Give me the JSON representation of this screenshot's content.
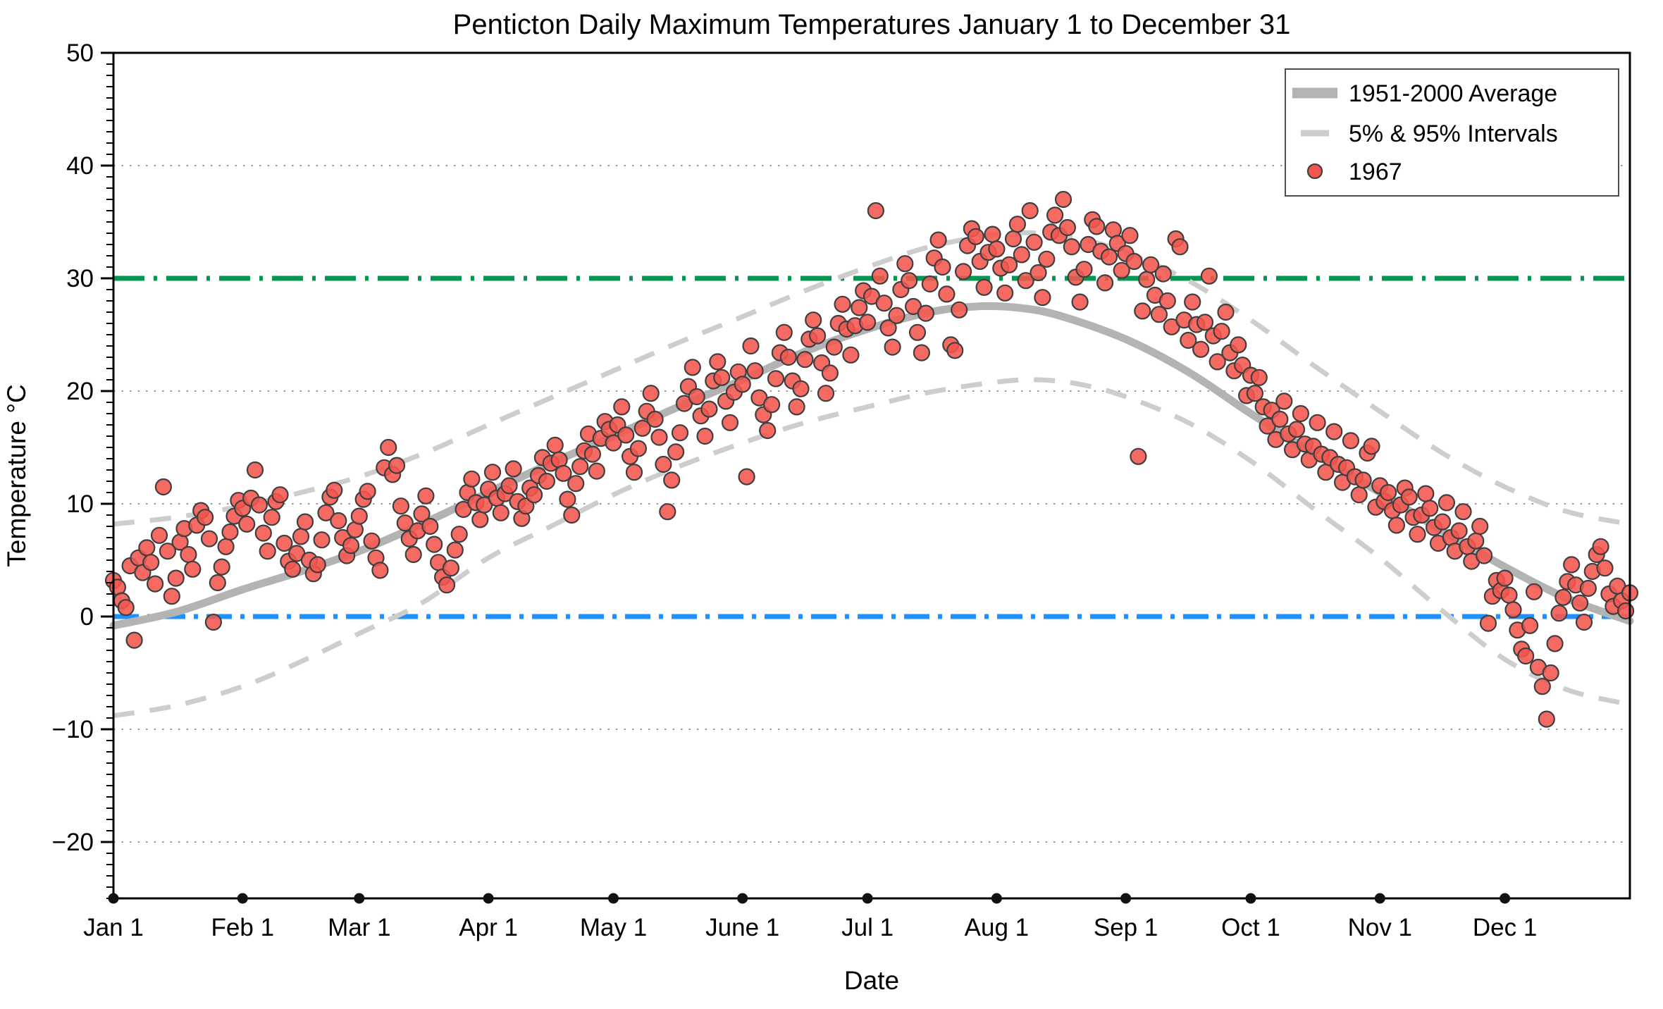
{
  "chart_data": {
    "type": "scatter",
    "title": "Penticton Daily Maximum Temperatures January 1 to December 31",
    "xlabel": "Date",
    "ylabel": "Temperature °C",
    "ylim": [
      -25,
      50
    ],
    "yticks_labeled": [
      -20,
      -10,
      0,
      10,
      20,
      30,
      40,
      50
    ],
    "minor_tick_step": 1,
    "gridlines_at": [
      40,
      20,
      10,
      -10,
      -20
    ],
    "grid_style": "dotted",
    "legend_position": "top-right",
    "x_month_ticks": [
      {
        "label": "Jan 1",
        "day": 0
      },
      {
        "label": "Feb 1",
        "day": 31
      },
      {
        "label": "Mar 1",
        "day": 59
      },
      {
        "label": "Apr 1",
        "day": 90
      },
      {
        "label": "May 1",
        "day": 120
      },
      {
        "label": "June 1",
        "day": 151
      },
      {
        "label": "Jul 1",
        "day": 181
      },
      {
        "label": "Aug 1",
        "day": 212
      },
      {
        "label": "Sep 1",
        "day": 243
      },
      {
        "label": "Oct 1",
        "day": 273
      },
      {
        "label": "Nov 1",
        "day": 304
      },
      {
        "label": "Dec 1",
        "day": 334
      }
    ],
    "reference_lines": [
      {
        "name": "30C-threshold-line",
        "value": 30,
        "style": "dashed",
        "color": "#00994f"
      },
      {
        "name": "freezing-0C-line",
        "value": 0,
        "style": "dashdot",
        "color": "#1e90ff"
      }
    ],
    "legend": {
      "entries": [
        {
          "label": "1951-2000 Average",
          "symbol": "thick-gray-line"
        },
        {
          "label": "5% & 95% Intervals",
          "symbol": "dashed-gray-line"
        },
        {
          "label": "1967",
          "symbol": "red-dot"
        }
      ]
    },
    "colors": {
      "average_line": "#b3b3b3",
      "interval_line": "#cdcdcd",
      "scatter_fill": "#f4554d",
      "scatter_edge": "#3f3f3f",
      "threshold_green": "#00994f",
      "freezing_blue": "#1e90ff",
      "gridline": "#9a9a9a",
      "axis": "#000000"
    },
    "average_curve": [
      [
        0,
        -0.8
      ],
      [
        15,
        0.4
      ],
      [
        31,
        2.4
      ],
      [
        45,
        4.0
      ],
      [
        59,
        5.8
      ],
      [
        74,
        8.2
      ],
      [
        90,
        11.0
      ],
      [
        105,
        13.6
      ],
      [
        120,
        16.0
      ],
      [
        135,
        18.5
      ],
      [
        151,
        21.0
      ],
      [
        166,
        23.5
      ],
      [
        181,
        25.5
      ],
      [
        196,
        27.0
      ],
      [
        207,
        27.5
      ],
      [
        217,
        27.4
      ],
      [
        227,
        26.7
      ],
      [
        243,
        24.6
      ],
      [
        258,
        21.7
      ],
      [
        273,
        18.0
      ],
      [
        288,
        14.5
      ],
      [
        304,
        11.0
      ],
      [
        319,
        7.6
      ],
      [
        334,
        4.4
      ],
      [
        349,
        1.6
      ],
      [
        364,
        -0.4
      ]
    ],
    "upper_95_interval": [
      [
        0,
        8.2
      ],
      [
        15,
        8.8
      ],
      [
        31,
        9.8
      ],
      [
        45,
        11.0
      ],
      [
        59,
        12.4
      ],
      [
        74,
        14.4
      ],
      [
        90,
        17.0
      ],
      [
        105,
        19.4
      ],
      [
        120,
        21.8
      ],
      [
        135,
        24.2
      ],
      [
        151,
        26.6
      ],
      [
        166,
        28.9
      ],
      [
        181,
        31.0
      ],
      [
        196,
        32.8
      ],
      [
        212,
        33.9
      ],
      [
        222,
        34.0
      ],
      [
        232,
        33.5
      ],
      [
        243,
        32.3
      ],
      [
        258,
        29.8
      ],
      [
        273,
        26.3
      ],
      [
        288,
        22.3
      ],
      [
        304,
        18.2
      ],
      [
        319,
        14.5
      ],
      [
        334,
        11.5
      ],
      [
        349,
        9.3
      ],
      [
        364,
        8.2
      ]
    ],
    "lower_5_interval": [
      [
        0,
        -8.8
      ],
      [
        15,
        -7.9
      ],
      [
        31,
        -6.2
      ],
      [
        45,
        -4.0
      ],
      [
        59,
        -1.5
      ],
      [
        74,
        1.2
      ],
      [
        90,
        5.2
      ],
      [
        105,
        8.0
      ],
      [
        120,
        10.8
      ],
      [
        135,
        13.2
      ],
      [
        151,
        15.4
      ],
      [
        166,
        17.2
      ],
      [
        181,
        18.6
      ],
      [
        196,
        19.9
      ],
      [
        212,
        20.8
      ],
      [
        222,
        21.0
      ],
      [
        232,
        20.6
      ],
      [
        243,
        19.5
      ],
      [
        258,
        17.2
      ],
      [
        273,
        13.8
      ],
      [
        288,
        9.6
      ],
      [
        304,
        5.2
      ],
      [
        319,
        0.5
      ],
      [
        334,
        -3.8
      ],
      [
        349,
        -6.5
      ],
      [
        364,
        -7.8
      ]
    ],
    "scatter_1967": {
      "series_label": "1967",
      "month_order": [
        "Jan",
        "Feb",
        "Mar",
        "Apr",
        "May",
        "Jun",
        "Jul",
        "Aug",
        "Sep",
        "Oct",
        "Nov",
        "Dec"
      ],
      "months": {
        "Jan": [
          3.2,
          2.6,
          1.4,
          0.8,
          4.5,
          -2.1,
          5.2,
          3.9,
          6.1,
          4.8,
          2.9,
          7.2,
          11.5,
          5.8,
          1.8,
          3.4,
          6.6,
          7.8,
          5.5,
          4.2,
          8.1,
          9.4,
          8.8,
          6.9,
          -0.5,
          3.0,
          4.4,
          6.2,
          7.5,
          8.9,
          10.3
        ],
        "Feb": [
          9.6,
          8.2,
          10.5,
          13.0,
          9.9,
          7.4,
          5.8,
          8.8,
          10.2,
          10.8,
          6.5,
          4.9,
          4.2,
          5.6,
          7.1,
          8.4,
          5.0,
          3.8,
          4.6,
          6.8,
          9.2,
          10.6,
          11.2,
          8.5,
          7.0,
          5.4,
          6.3,
          7.7
        ],
        "Mar": [
          8.9,
          10.4,
          11.1,
          6.7,
          5.2,
          4.1,
          13.2,
          15.0,
          12.6,
          13.4,
          9.8,
          8.3,
          6.9,
          5.5,
          7.6,
          9.1,
          10.7,
          8.0,
          6.4,
          4.8,
          3.5,
          2.8,
          4.3,
          5.9,
          7.3,
          9.5,
          11.0,
          12.2,
          10.1,
          8.6,
          9.9
        ],
        "Apr": [
          11.3,
          12.8,
          10.5,
          9.2,
          10.9,
          11.6,
          13.1,
          10.2,
          8.7,
          9.8,
          11.4,
          10.8,
          12.5,
          14.1,
          12.0,
          13.6,
          15.2,
          13.9,
          12.7,
          10.4,
          9.0,
          11.8,
          13.3,
          14.7,
          16.2,
          14.4,
          12.9,
          15.8,
          17.3,
          16.6
        ],
        "May": [
          15.4,
          17.0,
          18.6,
          16.1,
          14.2,
          12.8,
          14.9,
          16.7,
          18.2,
          19.8,
          17.5,
          15.9,
          13.5,
          9.3,
          12.1,
          14.6,
          16.3,
          18.9,
          20.4,
          22.1,
          19.5,
          17.8,
          16.0,
          18.4,
          20.9,
          22.6,
          21.2,
          19.1,
          17.2,
          19.9,
          21.7
        ],
        "Jun": [
          20.6,
          12.4,
          24.0,
          21.8,
          19.4,
          17.9,
          16.5,
          18.8,
          21.1,
          23.4,
          25.2,
          23.0,
          20.9,
          18.6,
          20.2,
          22.8,
          24.6,
          26.3,
          24.9,
          22.5,
          19.8,
          21.6,
          23.9,
          26.0,
          27.7,
          25.5,
          23.2,
          25.8,
          27.4,
          28.9
        ],
        "Jul": [
          26.1,
          28.4,
          36.0,
          30.2,
          27.8,
          25.6,
          23.9,
          26.7,
          29.0,
          31.3,
          29.8,
          27.5,
          25.2,
          23.4,
          26.9,
          29.5,
          31.8,
          33.4,
          31.0,
          28.6,
          24.1,
          23.6,
          27.2,
          30.6,
          32.9,
          34.4,
          33.7,
          31.5,
          29.2,
          32.3,
          33.9
        ],
        "Aug": [
          32.6,
          30.9,
          28.7,
          31.2,
          33.5,
          34.8,
          32.1,
          29.8,
          36.0,
          33.2,
          30.5,
          28.3,
          31.7,
          34.1,
          35.6,
          33.8,
          37.0,
          34.5,
          32.8,
          30.1,
          27.9,
          30.8,
          33.0,
          35.2,
          34.6,
          32.4,
          29.6,
          31.9,
          34.3,
          33.1,
          30.7
        ],
        "Sep": [
          32.2,
          33.8,
          31.5,
          14.2,
          27.1,
          29.9,
          31.2,
          28.5,
          26.8,
          30.4,
          28.0,
          25.7,
          33.5,
          32.8,
          26.3,
          24.5,
          27.9,
          25.9,
          23.7,
          26.1,
          30.2,
          24.9,
          22.6,
          25.3,
          27.0,
          23.4,
          21.8,
          24.1,
          22.3,
          19.6
        ],
        "Oct": [
          21.4,
          19.8,
          21.2,
          18.6,
          16.9,
          18.3,
          15.7,
          17.5,
          19.1,
          16.2,
          14.8,
          16.6,
          18.0,
          15.3,
          13.9,
          15.1,
          17.2,
          14.4,
          12.8,
          14.1,
          16.4,
          13.5,
          11.9,
          13.2,
          15.6,
          12.4,
          10.8,
          12.1,
          14.5,
          15.1,
          9.7
        ],
        "Nov": [
          11.6,
          10.2,
          11.0,
          9.4,
          8.1,
          9.9,
          11.4,
          10.6,
          8.8,
          7.3,
          9.0,
          10.9,
          9.6,
          7.9,
          6.5,
          8.4,
          10.1,
          7.0,
          5.8,
          7.6,
          9.3,
          6.2,
          4.9,
          6.7,
          8.0,
          5.4,
          -0.6,
          1.8,
          3.2,
          2.3
        ],
        "Dec": [
          3.4,
          1.9,
          0.6,
          -1.2,
          -2.9,
          -3.5,
          -0.8,
          2.2,
          -4.5,
          -6.2,
          -9.1,
          -5.0,
          -2.4,
          0.3,
          1.7,
          3.1,
          4.6,
          2.8,
          1.2,
          -0.5,
          2.5,
          4.0,
          5.5,
          6.2,
          4.3,
          2.0,
          0.9,
          2.7,
          1.4,
          0.5,
          2.1
        ]
      }
    }
  }
}
